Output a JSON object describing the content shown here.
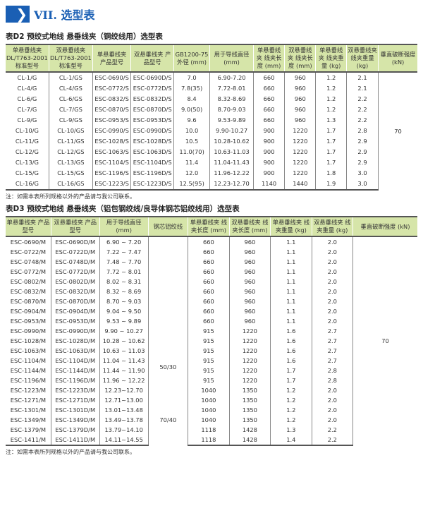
{
  "section": {
    "icon": "chevron-right-icon",
    "title": "VII. 选型表",
    "accent": "#1a5fb4",
    "header_band": "#d6e5a9"
  },
  "d2": {
    "title": "表D2 预绞式地线 悬垂线夹（铜绞线用）选型表",
    "headers": [
      "单悬垂线夹 DL/T763-2001 标准型号",
      "双悬垂线夹 DL/T763-2001 标准型号",
      "单悬垂线夹 产品型号",
      "双悬垂线夹 产品型号",
      "GB1200-75 外径 (mm)",
      "用于导线直径 (mm)",
      "单悬垂线夹 线夹长度 (mm)",
      "双悬垂线夹 线夹长度 (mm)",
      "单悬垂线夹 线夹重量 (kg)",
      "双悬垂线夹 线夹重量 (kg)",
      "垂直破断强度 (kN)"
    ],
    "rows": [
      [
        "CL-1/G",
        "CL-1/GS",
        "ESC-0690/S",
        "ESC-0690D/S",
        "7.0",
        "6.90-7.20",
        "660",
        "960",
        "1.2",
        "2.1"
      ],
      [
        "CL-4/G",
        "CL-4/GS",
        "ESC-0772/S",
        "ESC-0772D/S",
        "7.8(35)",
        "7.72-8.01",
        "660",
        "960",
        "1.2",
        "2.1"
      ],
      [
        "CL-6/G",
        "CL-6/GS",
        "ESC-0832/S",
        "ESC-0832D/S",
        "8.4",
        "8.32-8.69",
        "660",
        "960",
        "1.2",
        "2.2"
      ],
      [
        "CL-7/G",
        "CL-7/GS",
        "ESC-0870/S",
        "ESC-0870D/S",
        "9.0(50)",
        "8.70-9.03",
        "660",
        "960",
        "1.2",
        "2.2"
      ],
      [
        "CL-9/G",
        "CL-9/GS",
        "ESC-0953/S",
        "ESC-0953D/S",
        "9.6",
        "9.53-9.89",
        "660",
        "960",
        "1.3",
        "2.2"
      ],
      [
        "CL-10/G",
        "CL-10/GS",
        "ESC-0990/S",
        "ESC-0990D/S",
        "10.0",
        "9.90-10.27",
        "900",
        "1220",
        "1.7",
        "2.8"
      ],
      [
        "CL-11/G",
        "CL-11/GS",
        "ESC-1028/S",
        "ESC-1028D/S",
        "10.5",
        "10.28-10.62",
        "900",
        "1220",
        "1.7",
        "2.9"
      ],
      [
        "CL-12/G",
        "CL-12/GS",
        "ESC-1063/S",
        "ESC-1063D/S",
        "11.0(70)",
        "10.63-11.03",
        "900",
        "1220",
        "1.7",
        "2.9"
      ],
      [
        "CL-13/G",
        "CL-13/GS",
        "ESC-1104/S",
        "ESC-1104D/S",
        "11.4",
        "11.04-11.43",
        "900",
        "1220",
        "1.7",
        "2.9"
      ],
      [
        "CL-15/G",
        "CL-15/GS",
        "ESC-1196/S",
        "ESC-1196D/S",
        "12.0",
        "11.96-12.22",
        "900",
        "1220",
        "1.8",
        "3.0"
      ],
      [
        "CL-16/G",
        "CL-16/GS",
        "ESC-1223/S",
        "ESC-1223D/S",
        "12.5(95)",
        "12.23-12.70",
        "1140",
        "1440",
        "1.9",
        "3.0"
      ]
    ],
    "strength": "70",
    "note": "注：如需本表所列规格以外的产品请与我公司联系。"
  },
  "d3": {
    "title": "表D3 预绞式地线 悬垂线夹（铝包钢绞线/良导体钢芯铝绞线用）选型表",
    "headers": [
      "单悬垂线夹 产品型号",
      "双悬垂线夹 产品型号",
      "用于导线直径 (mm)",
      "钢芯铝绞线",
      "单悬垂线夹 线夹长度 (mm)",
      "双悬垂线夹 线夹长度 (mm)",
      "单悬垂线夹 线夹重量 (kg)",
      "双悬垂线夹 线夹重量 (kg)",
      "垂直破断强度 (kN)"
    ],
    "rows": [
      [
        "ESC-0690/M",
        "ESC-0690D/M",
        "6.90 ~ 7.20",
        "660",
        "960",
        "1.1",
        "2.0"
      ],
      [
        "ESC-0722/M",
        "ESC-0722D/M",
        "7.22 ~ 7.47",
        "660",
        "960",
        "1.1",
        "2.0"
      ],
      [
        "ESC-0748/M",
        "ESC-0748D/M",
        "7.48 ~ 7.70",
        "660",
        "960",
        "1.1",
        "2.0"
      ],
      [
        "ESC-0772/M",
        "ESC-0772D/M",
        "7.72 ~ 8.01",
        "660",
        "960",
        "1.1",
        "2.0"
      ],
      [
        "ESC-0802/M",
        "ESC-0802D/M",
        "8.02 ~ 8.31",
        "660",
        "960",
        "1.1",
        "2.0"
      ],
      [
        "ESC-0832/M",
        "ESC-0832D/M",
        "8.32 ~ 8.69",
        "660",
        "960",
        "1.1",
        "2.0"
      ],
      [
        "ESC-0870/M",
        "ESC-0870D/M",
        "8.70 ~ 9.03",
        "660",
        "960",
        "1.1",
        "2.0"
      ],
      [
        "ESC-0904/M",
        "ESC-0904D/M",
        "9.04 ~ 9.50",
        "660",
        "960",
        "1.1",
        "2.0"
      ],
      [
        "ESC-0953/M",
        "ESC-0953D/M",
        "9.53 ~ 9.89",
        "660",
        "960",
        "1.1",
        "2.0"
      ],
      [
        "ESC-0990/M",
        "ESC-0990D/M",
        "9.90 ~ 10.27",
        "915",
        "1220",
        "1.6",
        "2.7"
      ],
      [
        "ESC-1028/M",
        "ESC-1028D/M",
        "10.28 ~ 10.62",
        "915",
        "1220",
        "1.6",
        "2.7"
      ],
      [
        "ESC-1063/M",
        "ESC-1063D/M",
        "10.63 ~ 11.03",
        "915",
        "1220",
        "1.6",
        "2.7"
      ],
      [
        "ESC-1104/M",
        "ESC-1104D/M",
        "11.04 ~ 11.43",
        "915",
        "1220",
        "1.6",
        "2.7"
      ],
      [
        "ESC-1144/M",
        "ESC-1144D/M",
        "11.44 ~ 11.90",
        "915",
        "1220",
        "1.7",
        "2.8"
      ],
      [
        "ESC-1196/M",
        "ESC-1196D/M",
        "11.96 ~ 12.22",
        "915",
        "1220",
        "1.7",
        "2.8"
      ],
      [
        "ESC-1223/M",
        "ESC-1223D/M",
        "12.23~12.70",
        "1040",
        "1350",
        "1.2",
        "2.0"
      ],
      [
        "ESC-1271/M",
        "ESC-1271D/M",
        "12.71~13.00",
        "1040",
        "1350",
        "1.2",
        "2.0"
      ],
      [
        "ESC-1301/M",
        "ESC-1301D/M",
        "13.01~13.48",
        "1040",
        "1350",
        "1.2",
        "2.0"
      ],
      [
        "ESC-1349/M",
        "ESC-1349D/M",
        "13.49~13.78",
        "1040",
        "1350",
        "1.2",
        "2.0"
      ],
      [
        "ESC-1379/M",
        "ESC-1379D/M",
        "13.79~14.10",
        "1118",
        "1428",
        "1.3",
        "2.2"
      ],
      [
        "ESC-1411/M",
        "ESC-1411D/M",
        "14.11~14.55",
        "1118",
        "1428",
        "1.4",
        "2.2"
      ]
    ],
    "strand_groups": [
      {
        "label": "50/30",
        "rows": 15
      },
      {
        "label": "70/40",
        "rows": 6
      }
    ],
    "strength": "70",
    "note": "注：如需本表所列规格以外的产品请与我公司联系。"
  }
}
